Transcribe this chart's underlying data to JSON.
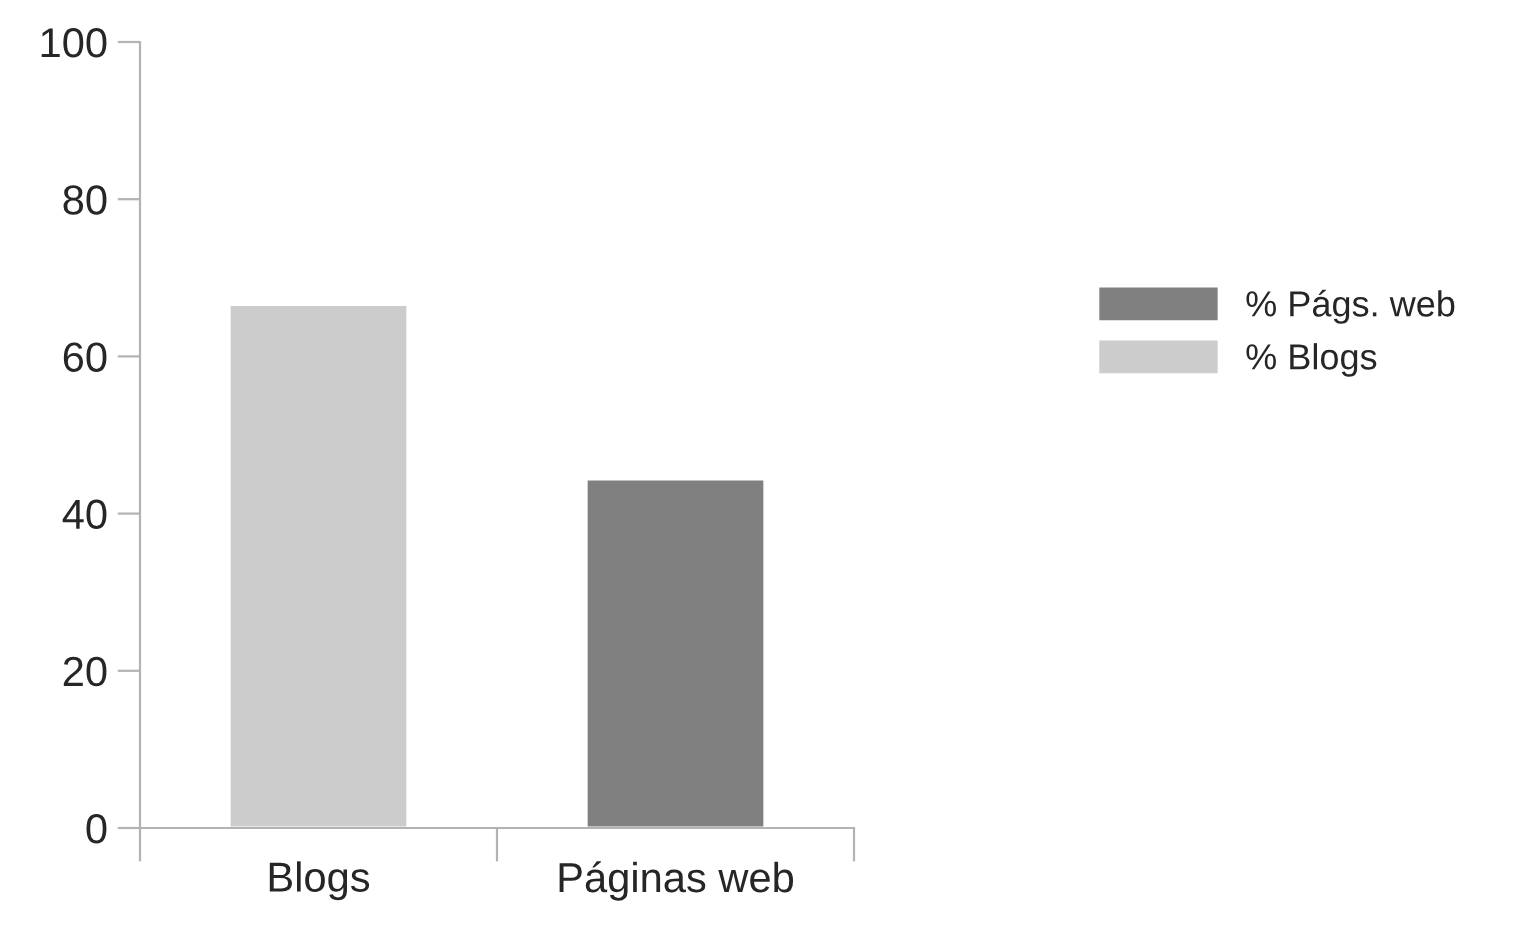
{
  "chart_data": {
    "type": "bar",
    "categories": [
      "Blogs",
      "Páginas web"
    ],
    "series": [
      {
        "name": "% Págs. web",
        "color": "#808080",
        "values": [
          null,
          44.4
        ]
      },
      {
        "name": "% Blogs",
        "color": "#cccccc",
        "values": [
          66.6,
          null
        ]
      }
    ],
    "ylim": [
      0,
      100
    ],
    "yticks": [
      0,
      20,
      40,
      60,
      80,
      100
    ],
    "grid": false,
    "legend": "right"
  }
}
